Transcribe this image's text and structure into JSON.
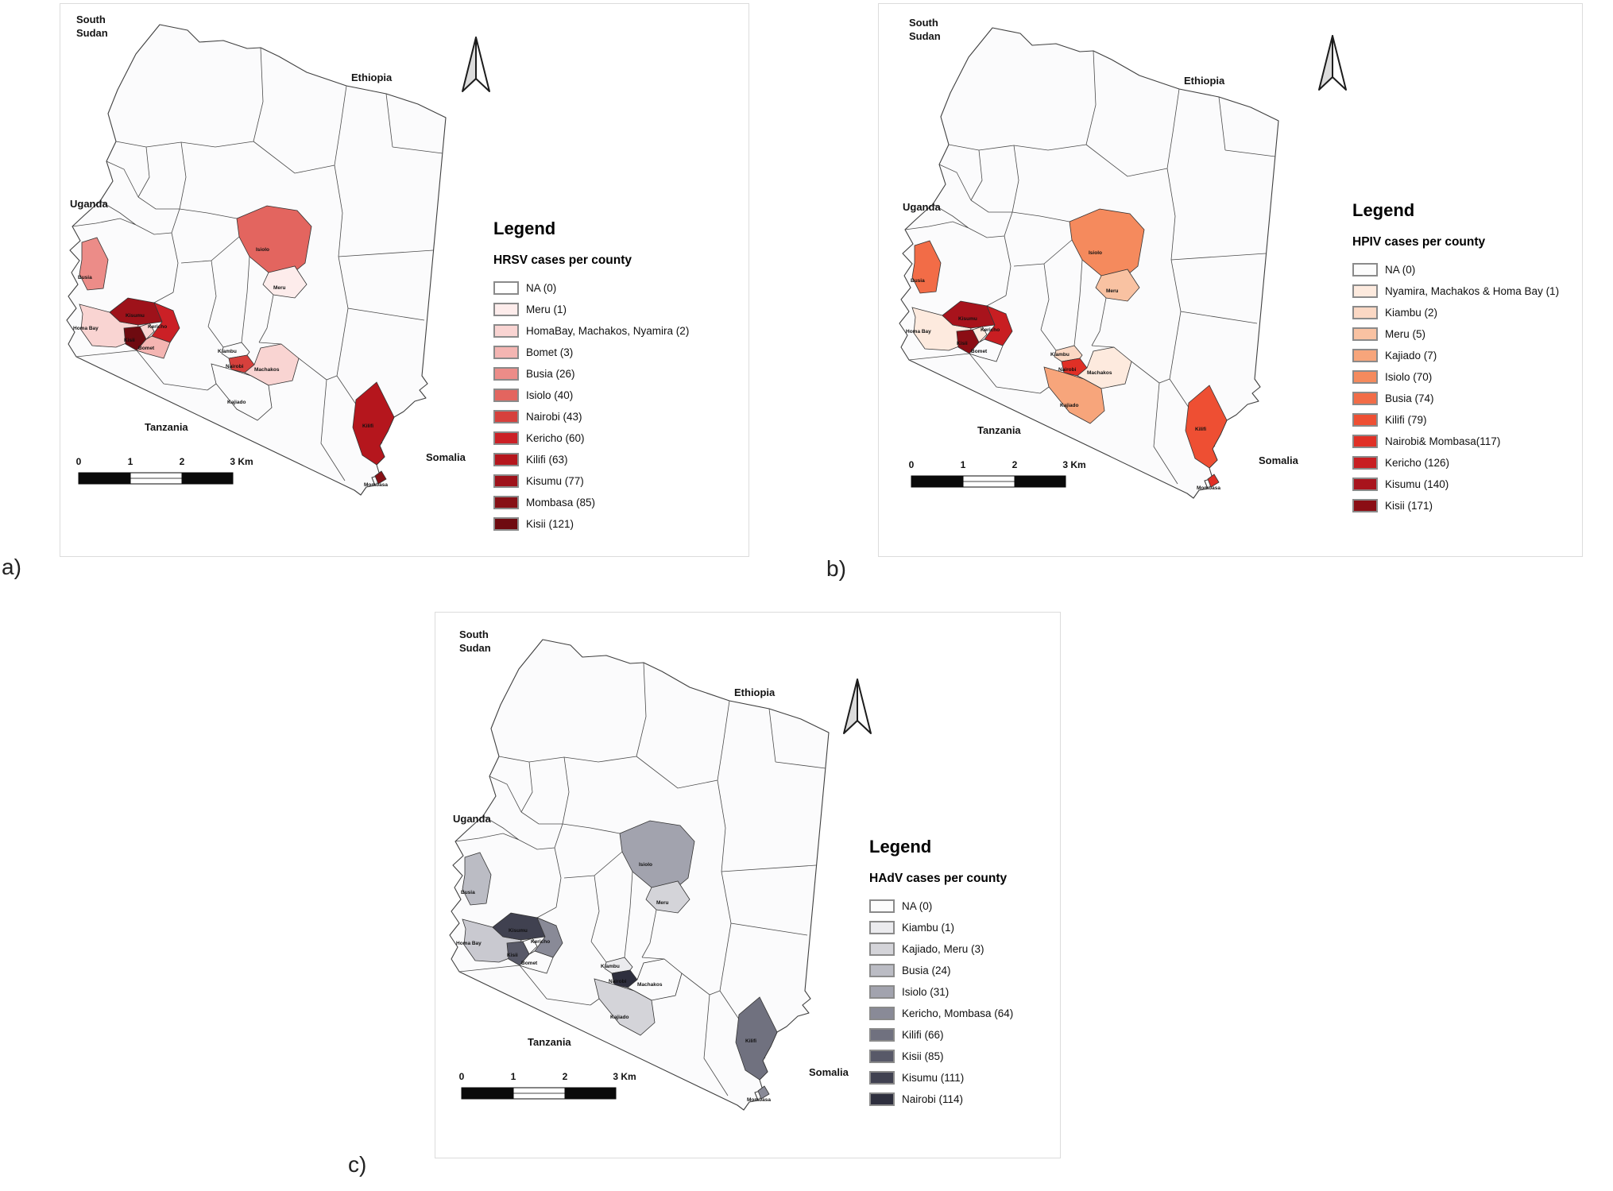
{
  "page": {
    "background": "#ffffff"
  },
  "panels": [
    {
      "id": "a",
      "caption": "a)",
      "legend": {
        "title": "Legend",
        "subtitle": "HRSV cases per county",
        "items": [
          {
            "label": "NA (0)",
            "color": "#ffffff",
            "counties": [
              "NA"
            ],
            "value": 0
          },
          {
            "label": "Meru (1)",
            "color": "#fdeceb",
            "counties": [
              "Meru"
            ],
            "value": 1
          },
          {
            "label": "HomaBay, Machakos, Nyamira (2)",
            "color": "#f9d4d2",
            "counties": [
              "HomaBay",
              "Machakos",
              "Nyamira"
            ],
            "value": 2
          },
          {
            "label": "Bomet (3)",
            "color": "#f4b5b2",
            "counties": [
              "Bomet"
            ],
            "value": 3
          },
          {
            "label": "Busia (26)",
            "color": "#ec8c88",
            "counties": [
              "Busia"
            ],
            "value": 26
          },
          {
            "label": "Isiolo (40)",
            "color": "#e3655f",
            "counties": [
              "Isiolo"
            ],
            "value": 40
          },
          {
            "label": "Nairobi (43)",
            "color": "#d6403c",
            "counties": [
              "Nairobi"
            ],
            "value": 43
          },
          {
            "label": "Kericho (60)",
            "color": "#cb2026",
            "counties": [
              "Kericho"
            ],
            "value": 60
          },
          {
            "label": "Kilifi (63)",
            "color": "#b5161d",
            "counties": [
              "Kilifi"
            ],
            "value": 63
          },
          {
            "label": "Kisumu (77)",
            "color": "#9e121a",
            "counties": [
              "Kisumu"
            ],
            "value": 77
          },
          {
            "label": "Mombasa (85)",
            "color": "#871016",
            "counties": [
              "Mombasa"
            ],
            "value": 85
          },
          {
            "label": "Kisii (121)",
            "color": "#6e0a10",
            "counties": [
              "Kisii"
            ],
            "value": 121
          }
        ]
      },
      "county_fills": {
        "meru": "#fdeceb",
        "homabay": "#f9d4d2",
        "machakos": "#f9d4d2",
        "nyamira": "#f9d4d2",
        "bomet": "#f4b5b2",
        "busia": "#ec8c88",
        "isiolo": "#e3655f",
        "nairobi": "#d6403c",
        "kericho": "#cb2026",
        "kilifi": "#b5161d",
        "kisumu": "#9e121a",
        "mombasa": "#871016",
        "kisii": "#6e0a10"
      }
    },
    {
      "id": "b",
      "caption": "b)",
      "legend": {
        "title": "Legend",
        "subtitle": "HPIV cases per county",
        "items": [
          {
            "label": "NA (0)",
            "color": "#fcfcfc",
            "counties": [
              "NA"
            ],
            "value": 0
          },
          {
            "label": "Nyamira, Machakos & Homa Bay (1)",
            "color": "#fdeade",
            "counties": [
              "Nyamira",
              "Machakos",
              "Homa Bay"
            ],
            "value": 1
          },
          {
            "label": "Kiambu (2)",
            "color": "#fbd8c4",
            "counties": [
              "Kiambu"
            ],
            "value": 2
          },
          {
            "label": "Meru (5)",
            "color": "#f9c2a2",
            "counties": [
              "Meru"
            ],
            "value": 5
          },
          {
            "label": "Kajiado (7)",
            "color": "#f7a57b",
            "counties": [
              "Kajiado"
            ],
            "value": 7
          },
          {
            "label": "Isiolo (70)",
            "color": "#f58a5d",
            "counties": [
              "Isiolo"
            ],
            "value": 70
          },
          {
            "label": "Busia (74)",
            "color": "#f26c47",
            "counties": [
              "Busia"
            ],
            "value": 74
          },
          {
            "label": "Kilifi (79)",
            "color": "#ee4f33",
            "counties": [
              "Kilifi"
            ],
            "value": 79
          },
          {
            "label": "Nairobi& Mombasa(117)",
            "color": "#e03026",
            "counties": [
              "Nairobi",
              "Mombasa"
            ],
            "value": 117
          },
          {
            "label": "Kericho (126)",
            "color": "#c81e22",
            "counties": [
              "Kericho"
            ],
            "value": 126
          },
          {
            "label": "Kisumu (140)",
            "color": "#a8131c",
            "counties": [
              "Kisumu"
            ],
            "value": 140
          },
          {
            "label": "Kisii (171)",
            "color": "#8b0d14",
            "counties": [
              "Kisii"
            ],
            "value": 171
          }
        ]
      },
      "county_fills": {
        "nyamira": "#fdeade",
        "machakos": "#fdeade",
        "homabay": "#fdeade",
        "kiambu": "#fbd8c4",
        "meru": "#f9c2a2",
        "kajiado": "#f7a57b",
        "isiolo": "#f58a5d",
        "busia": "#f26c47",
        "kilifi": "#ee4f33",
        "nairobi": "#e03026",
        "mombasa": "#e03026",
        "kericho": "#c81e22",
        "kisumu": "#a8131c",
        "kisii": "#8b0d14"
      }
    },
    {
      "id": "c",
      "caption": "c)",
      "legend": {
        "title": "Legend",
        "subtitle": "HAdV cases per county",
        "items": [
          {
            "label": "NA (0)",
            "color": "#fcfcfc",
            "counties": [
              "NA"
            ],
            "value": 0
          },
          {
            "label": "Kiambu (1)",
            "color": "#ebebee",
            "counties": [
              "Kiambu"
            ],
            "value": 1
          },
          {
            "label": "Kajiado, Meru (3)",
            "color": "#d4d4d9",
            "counties": [
              "Kajiado",
              "Meru"
            ],
            "value": 3
          },
          {
            "label": "Busia (24)",
            "color": "#bbbcc4",
            "counties": [
              "Busia"
            ],
            "value": 24
          },
          {
            "label": "Isiolo (31)",
            "color": "#a2a3ae",
            "counties": [
              "Isiolo"
            ],
            "value": 31
          },
          {
            "label": "Kericho, Mombasa (64)",
            "color": "#898a97",
            "counties": [
              "Kericho",
              "Mombasa"
            ],
            "value": 64
          },
          {
            "label": "Kilifi (66)",
            "color": "#70717f",
            "counties": [
              "Kilifi"
            ],
            "value": 66
          },
          {
            "label": "Kisii (85)",
            "color": "#585968",
            "counties": [
              "Kisii"
            ],
            "value": 85
          },
          {
            "label": "Kisumu (111)",
            "color": "#404150",
            "counties": [
              "Kisumu"
            ],
            "value": 111
          },
          {
            "label": "Nairobi (114)",
            "color": "#2e2f3e",
            "counties": [
              "Nairobi"
            ],
            "value": 114
          }
        ]
      },
      "county_fills": {
        "kiambu": "#ebebee",
        "kajiado": "#d4d4d9",
        "meru": "#d4d4d9",
        "homabay": "#c9c9d0",
        "busia": "#bbbcc4",
        "isiolo": "#a2a3ae",
        "kericho": "#898a97",
        "mombasa": "#898a97",
        "kilifi": "#70717f",
        "kisii": "#585968",
        "kisumu": "#404150",
        "nairobi": "#2e2f3e"
      }
    }
  ],
  "map_labels": {
    "countries": [
      {
        "id": "south-sudan",
        "lines": [
          "South",
          "Sudan"
        ]
      },
      {
        "id": "ethiopia",
        "lines": [
          "Ethiopia"
        ]
      },
      {
        "id": "uganda",
        "lines": [
          "Uganda"
        ]
      },
      {
        "id": "tanzania",
        "lines": [
          "Tanzania"
        ]
      },
      {
        "id": "somalia",
        "lines": [
          "Somalia"
        ]
      }
    ],
    "counties": [
      {
        "id": "busia",
        "text": "Busia"
      },
      {
        "id": "homabay",
        "text": "Homa Bay"
      },
      {
        "id": "kisumu",
        "text": "Kisumu"
      },
      {
        "id": "kericho",
        "text": "Kericho"
      },
      {
        "id": "bomet",
        "text": "Bomet"
      },
      {
        "id": "kisii",
        "text": "Kisii"
      },
      {
        "id": "kiambu",
        "text": "Kiambu"
      },
      {
        "id": "nairobi",
        "text": "Nairobi"
      },
      {
        "id": "machakos",
        "text": "Machakos"
      },
      {
        "id": "meru",
        "text": "Meru"
      },
      {
        "id": "isiolo",
        "text": "Isiolo"
      },
      {
        "id": "kajiado",
        "text": "Kajiado"
      },
      {
        "id": "kilifi",
        "text": "Kilifi"
      },
      {
        "id": "mombasa",
        "text": "Mombasa"
      }
    ]
  },
  "scale_bar": {
    "ticks": [
      "0",
      "1",
      "2",
      "3 Km"
    ]
  }
}
